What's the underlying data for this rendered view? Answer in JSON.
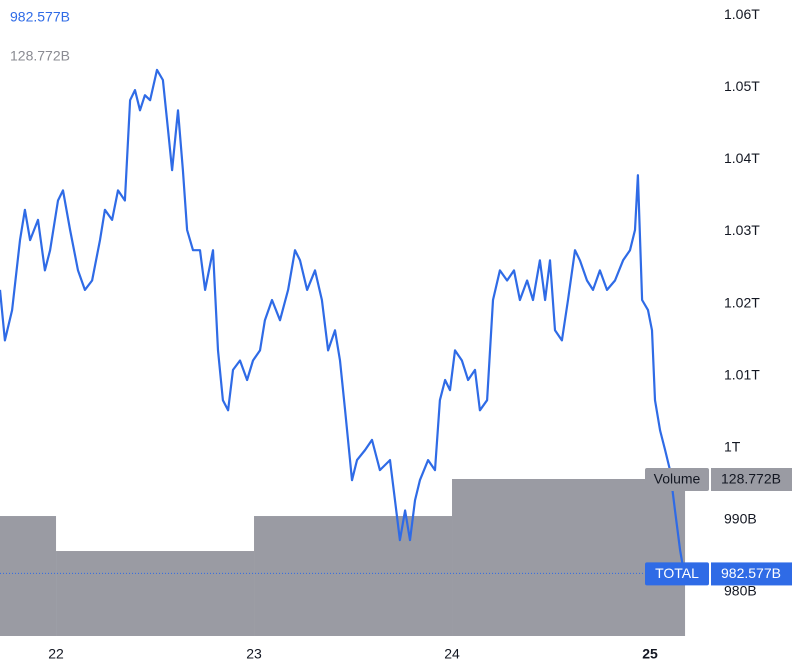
{
  "chart_data": {
    "type": "line",
    "series": [
      {
        "name": "TOTAL",
        "type": "line",
        "color": "#2f6be6",
        "current": {
          "value": 982.577,
          "label": "982.577B"
        },
        "x": [
          21.717,
          21.742,
          21.778,
          21.818,
          21.843,
          21.869,
          21.909,
          21.944,
          21.97,
          22.01,
          22.035,
          22.071,
          22.111,
          22.146,
          22.182,
          22.222,
          22.247,
          22.283,
          22.313,
          22.348,
          22.374,
          22.399,
          22.424,
          22.449,
          22.475,
          22.51,
          22.54,
          22.566,
          22.586,
          22.616,
          22.641,
          22.662,
          22.692,
          22.727,
          22.753,
          22.793,
          22.818,
          22.843,
          22.869,
          22.894,
          22.929,
          22.965,
          22.995,
          23.03,
          23.055,
          23.091,
          23.131,
          23.172,
          23.207,
          23.232,
          23.268,
          23.308,
          23.343,
          23.374,
          23.409,
          23.434,
          23.46,
          23.495,
          23.52,
          23.561,
          23.596,
          23.636,
          23.687,
          23.712,
          23.737,
          23.763,
          23.788,
          23.813,
          23.838,
          23.879,
          23.914,
          23.939,
          23.965,
          23.99,
          24.015,
          24.05,
          24.081,
          24.116,
          24.141,
          24.177,
          24.207,
          24.242,
          24.278,
          24.313,
          24.343,
          24.379,
          24.409,
          24.444,
          24.47,
          24.495,
          24.52,
          24.555,
          24.586,
          24.621,
          24.646,
          24.682,
          24.712,
          24.747,
          24.783,
          24.823,
          24.864,
          24.899,
          24.924,
          24.939,
          24.96,
          24.99,
          25.01,
          25.025,
          25.051,
          25.076,
          25.101,
          25.126,
          25.152,
          25.172
        ],
        "values": [
          1021.9,
          1014.9,
          1019.1,
          1028.8,
          1033.0,
          1028.8,
          1031.6,
          1024.6,
          1027.4,
          1034.3,
          1035.7,
          1030.2,
          1024.6,
          1021.9,
          1023.2,
          1028.8,
          1033.0,
          1031.6,
          1035.7,
          1034.3,
          1048.2,
          1049.6,
          1046.8,
          1048.9,
          1048.2,
          1052.4,
          1051.0,
          1044.0,
          1038.5,
          1046.8,
          1038.5,
          1030.2,
          1027.4,
          1027.4,
          1021.9,
          1027.4,
          1013.5,
          1006.6,
          1005.2,
          1010.8,
          1012.1,
          1009.4,
          1012.1,
          1013.5,
          1017.7,
          1020.5,
          1017.7,
          1021.9,
          1027.4,
          1026.0,
          1021.9,
          1024.6,
          1020.5,
          1013.5,
          1016.3,
          1012.1,
          1005.2,
          995.5,
          998.3,
          999.7,
          1001.1,
          996.9,
          998.3,
          992.7,
          987.2,
          991.3,
          987.2,
          992.7,
          995.5,
          998.3,
          996.9,
          1006.6,
          1009.4,
          1008.0,
          1013.5,
          1012.1,
          1009.4,
          1010.8,
          1005.2,
          1006.6,
          1020.5,
          1024.6,
          1023.2,
          1024.6,
          1020.5,
          1023.2,
          1020.5,
          1026.0,
          1020.5,
          1026.0,
          1016.3,
          1014.9,
          1020.5,
          1027.4,
          1026.0,
          1023.2,
          1021.9,
          1024.6,
          1021.9,
          1023.2,
          1026.0,
          1027.4,
          1030.2,
          1037.8,
          1020.5,
          1019.1,
          1016.3,
          1006.6,
          1002.4,
          999.7,
          996.9,
          991.3,
          985.8,
          982.577
        ]
      },
      {
        "name": "Volume",
        "type": "bar",
        "axis": "y2",
        "color": "#9a9ba3",
        "current": {
          "value": 128.772,
          "label": "128.772B"
        },
        "bins": [
          21.717,
          22,
          23,
          24,
          25.177
        ],
        "values": [
          98.4,
          69.7,
          98.4,
          128.772
        ]
      }
    ],
    "xlim": [
      21.717,
      25.303
    ],
    "xticks": [
      22,
      23,
      24,
      25
    ],
    "ylim": [
      973.9,
      1062.1
    ],
    "yticks": [
      {
        "value": 980,
        "label": "980B"
      },
      {
        "value": 990,
        "label": "990B"
      },
      {
        "value": 1000,
        "label": "1T"
      },
      {
        "value": 1010,
        "label": "1.01T"
      },
      {
        "value": 1020,
        "label": "1.02T"
      },
      {
        "value": 1030,
        "label": "1.03T"
      },
      {
        "value": 1040,
        "label": "1.04T"
      },
      {
        "value": 1050,
        "label": "1.05T"
      },
      {
        "value": 1060,
        "label": "1.06T"
      }
    ],
    "grid": false
  }
}
